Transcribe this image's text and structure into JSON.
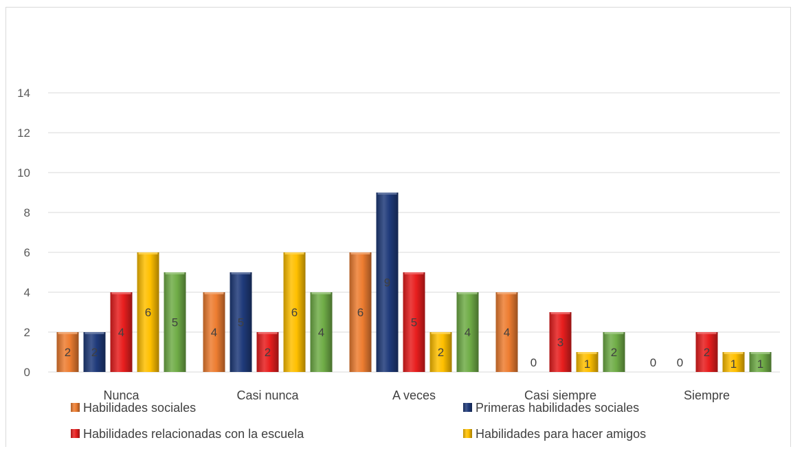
{
  "chart_data": {
    "type": "bar",
    "categories": [
      "Nunca",
      "Casi nunca",
      "A veces",
      "Casi siempre",
      "Siempre"
    ],
    "series": [
      {
        "name": "Habilidades sociales",
        "values": [
          2,
          4,
          6,
          4,
          0
        ],
        "color": "#ed7d31"
      },
      {
        "name": "Primeras habilidades sociales",
        "values": [
          2,
          5,
          9,
          0,
          0
        ],
        "color": "#1f3a7a"
      },
      {
        "name": "Habilidades relacionadas con la escuela",
        "values": [
          4,
          2,
          5,
          3,
          2
        ],
        "color": "#e81e1e"
      },
      {
        "name": "Habilidades para hacer amigos",
        "values": [
          6,
          6,
          2,
          1,
          1
        ],
        "color": "#ffc000"
      },
      {
        "name": "",
        "values": [
          5,
          4,
          4,
          2,
          1
        ],
        "color": "#70ad47"
      }
    ],
    "ylim": [
      0,
      14
    ],
    "yticks": [
      0,
      2,
      4,
      6,
      8,
      10,
      12,
      14
    ],
    "grid": true,
    "legend": "bottom",
    "title": "",
    "xlabel": "",
    "ylabel": ""
  }
}
